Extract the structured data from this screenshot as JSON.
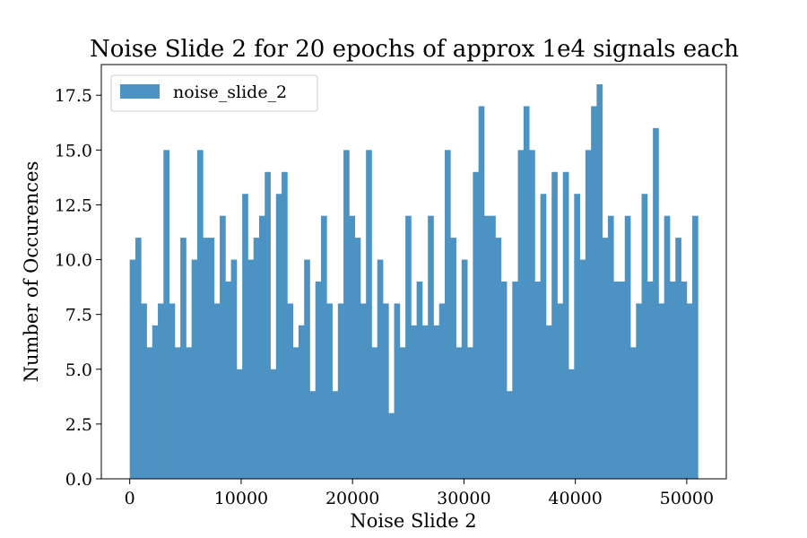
{
  "chart_data": {
    "type": "bar",
    "title": "Noise Slide 2 for 20 epochs of approx 1e4 signals each",
    "xlabel": "Noise Slide 2",
    "ylabel": "Number of Occurences",
    "xlim": [
      -2550,
      53550
    ],
    "ylim": [
      0,
      18.9
    ],
    "bin_start": 0,
    "bin_end": 51000,
    "xticks": [
      0,
      10000,
      20000,
      30000,
      40000,
      50000
    ],
    "yticks": [
      0.0,
      2.5,
      5.0,
      7.5,
      10.0,
      12.5,
      15.0,
      17.5
    ],
    "xtick_labels": [
      "0",
      "10000",
      "20000",
      "30000",
      "40000",
      "50000"
    ],
    "ytick_labels": [
      "0.0",
      "2.5",
      "5.0",
      "7.5",
      "10.0",
      "12.5",
      "15.0",
      "17.5"
    ],
    "bar_color": "#4c93c3",
    "legend": {
      "label": "noise_slide_2",
      "position": "upper-left"
    },
    "grid": false,
    "values": [
      10,
      11,
      8,
      6,
      7,
      8,
      15,
      8,
      6,
      11,
      6,
      10,
      15,
      11,
      11,
      8,
      12,
      9,
      10,
      5,
      13,
      10,
      11,
      12,
      14,
      5,
      13,
      14,
      8,
      6,
      7,
      10,
      4,
      9,
      12,
      8,
      4,
      8,
      15,
      12,
      11,
      8,
      15,
      6,
      10,
      8,
      3,
      8,
      6,
      12,
      7,
      9,
      7,
      12,
      7,
      8,
      15,
      11,
      6,
      10,
      6,
      14,
      17,
      12,
      12,
      11,
      9,
      4,
      9,
      15,
      17,
      15,
      9,
      13,
      7,
      14,
      8,
      14,
      5,
      13,
      10,
      15,
      17,
      18,
      11,
      12,
      9,
      9,
      12,
      6,
      8,
      13,
      9,
      16,
      8,
      12,
      9,
      11,
      9,
      8,
      12
    ]
  }
}
